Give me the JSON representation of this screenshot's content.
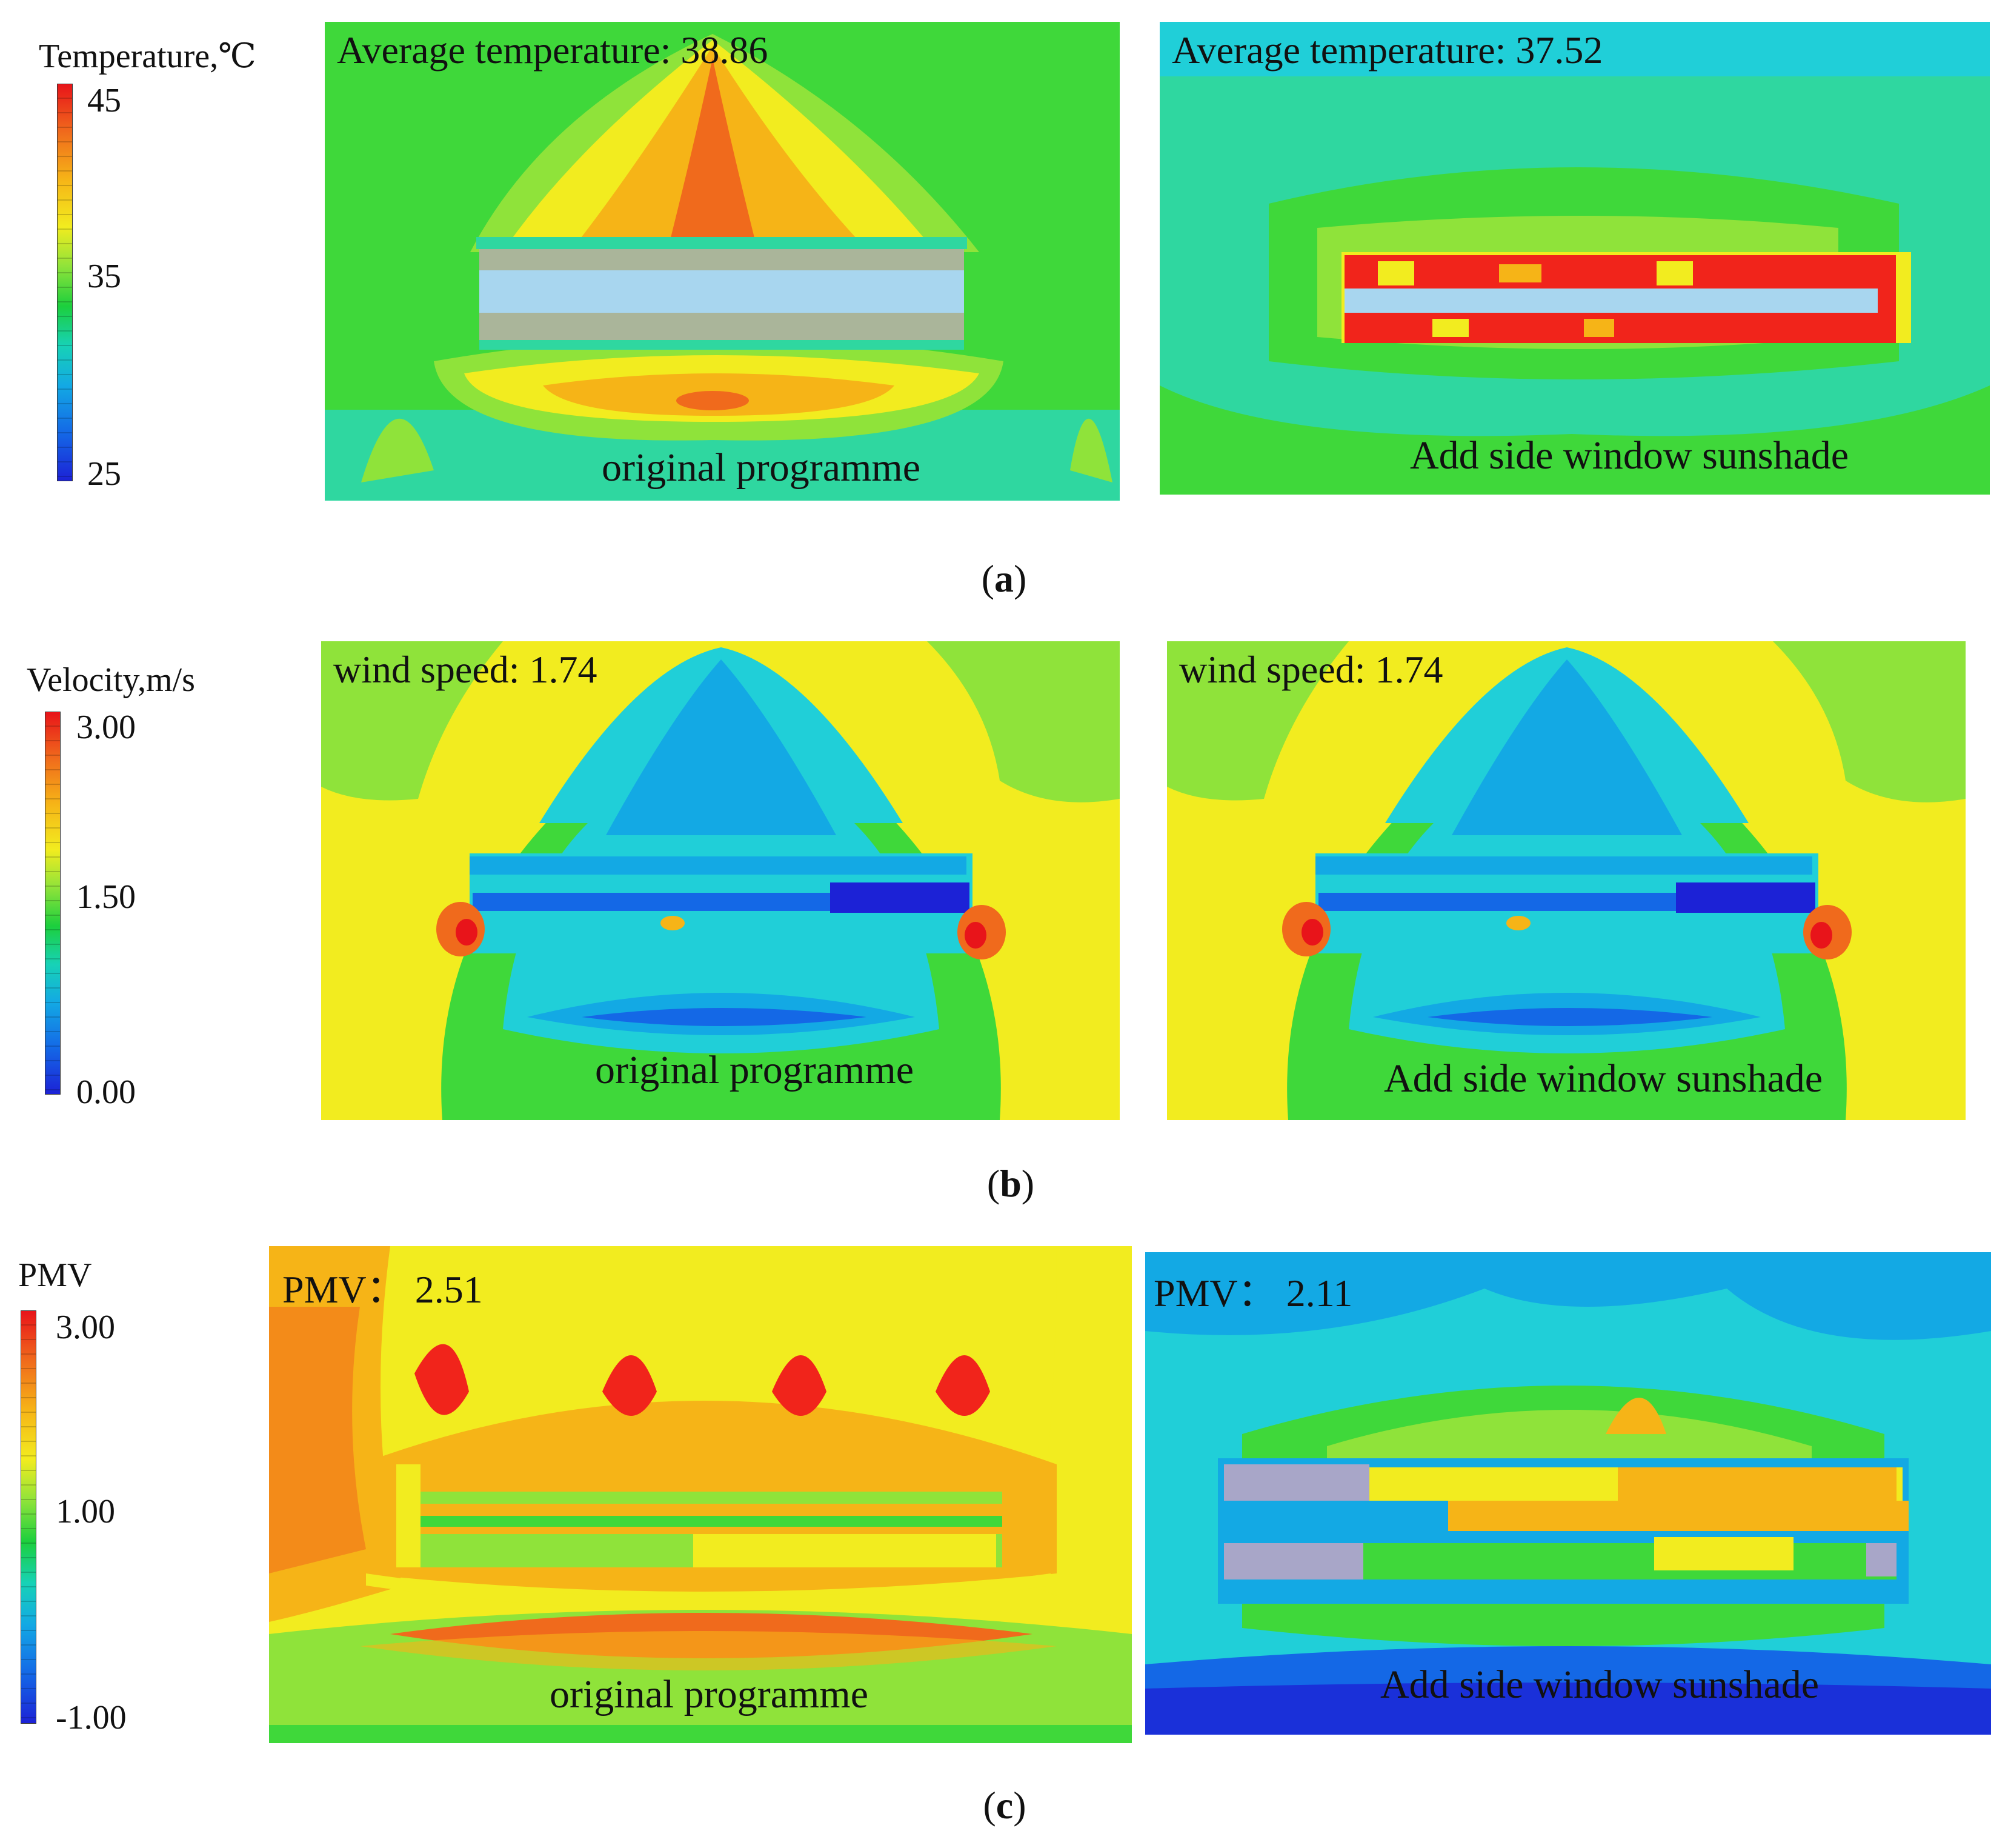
{
  "rows": [
    {
      "id": "a",
      "legend": {
        "title": "Temperature,℃",
        "ticks": [
          "45",
          "35",
          "25"
        ],
        "max": 45,
        "mid": 35,
        "min": 25
      },
      "sublabel": "a",
      "panels": [
        {
          "top_text": "Average temperature: 38.86",
          "bottom_text": "original programme"
        },
        {
          "top_text": "Average temperature: 37.52",
          "bottom_text": "Add side window sunshade"
        }
      ]
    },
    {
      "id": "b",
      "legend": {
        "title": "Velocity,m/s",
        "ticks": [
          "3.00",
          "1.50",
          "0.00"
        ],
        "max": 3.0,
        "mid": 1.5,
        "min": 0.0
      },
      "sublabel": "b",
      "panels": [
        {
          "top_text": "wind speed: 1.74",
          "bottom_text": "original programme"
        },
        {
          "top_text": "wind speed: 1.74",
          "bottom_text": "Add side window sunshade"
        }
      ]
    },
    {
      "id": "c",
      "legend": {
        "title": "PMV",
        "ticks": [
          "3.00",
          "1.00",
          "-1.00"
        ],
        "max": 3.0,
        "mid": 1.0,
        "min": -1.0
      },
      "sublabel": "c",
      "panels": [
        {
          "top_text": "PMV： 2.51",
          "bottom_text": "original programme"
        },
        {
          "top_text": "PMV： 2.11",
          "bottom_text": "Add side window sunshade"
        }
      ]
    }
  ]
}
